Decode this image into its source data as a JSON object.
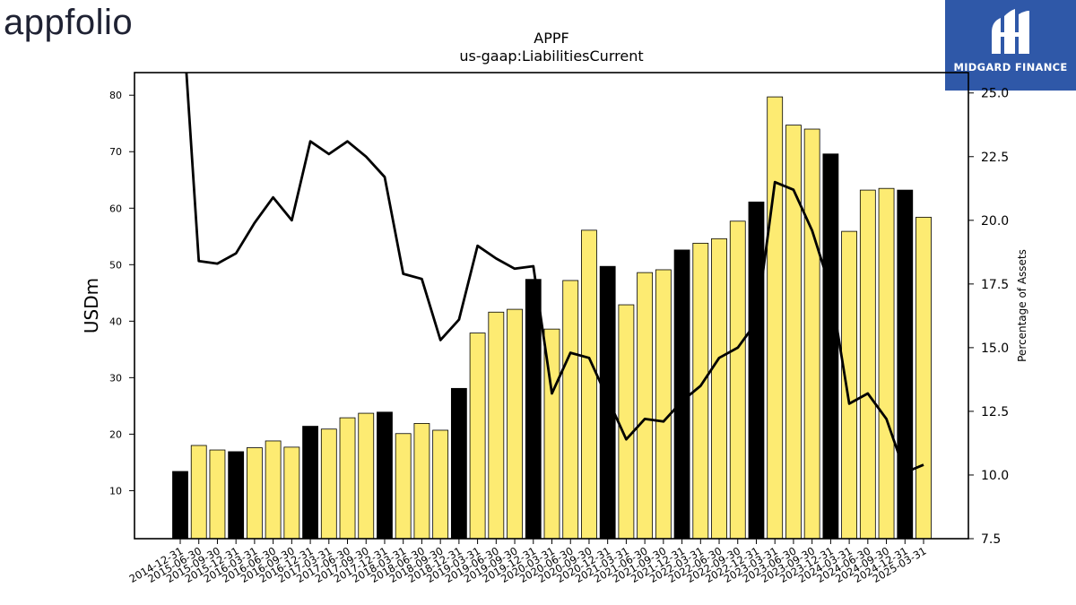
{
  "logos": {
    "left_text": "appfolio",
    "right_text": "MIDGARD FINANCE"
  },
  "chart_data": {
    "type": "bar",
    "title": "APPF",
    "subtitle": "us-gaap:LiabilitiesCurrent",
    "ylabel": "USDm",
    "y2label": "Percentage of Assets",
    "ylim": [
      1.5,
      84
    ],
    "y2lim": [
      7.5,
      25.8
    ],
    "yticks": [
      10,
      20,
      30,
      40,
      50,
      60,
      70,
      80
    ],
    "y2ticks": [
      "7.5",
      "10.0",
      "12.5",
      "15.0",
      "17.5",
      "20.0",
      "22.5",
      "25.0"
    ],
    "categories": [
      "2014-12-31",
      "2015-06-30",
      "2015-09-30",
      "2015-12-31",
      "2016-03-31",
      "2016-06-30",
      "2016-09-30",
      "2016-12-31",
      "2017-03-31",
      "2017-06-30",
      "2017-09-30",
      "2017-12-31",
      "2018-03-31",
      "2018-06-30",
      "2018-09-30",
      "2018-12-31",
      "2019-03-31",
      "2019-06-30",
      "2019-09-30",
      "2019-12-31",
      "2020-03-31",
      "2020-06-30",
      "2020-09-30",
      "2020-12-31",
      "2021-03-31",
      "2021-06-30",
      "2021-09-30",
      "2021-12-31",
      "2022-03-31",
      "2022-06-30",
      "2022-09-30",
      "2022-12-31",
      "2023-03-31",
      "2023-06-30",
      "2023-09-30",
      "2023-12-31",
      "2024-03-31",
      "2024-06-30",
      "2024-09-30",
      "2024-12-31",
      "2025-03-31"
    ],
    "series": [
      {
        "kind": "bar",
        "values": [
          13.4,
          18.0,
          17.2,
          16.9,
          17.6,
          18.8,
          17.7,
          21.4,
          20.9,
          22.9,
          23.7,
          23.9,
          20.1,
          21.9,
          20.7,
          28.1,
          37.9,
          41.6,
          42.1,
          47.4,
          38.6,
          47.2,
          56.1,
          49.7,
          42.9,
          48.6,
          49.1,
          52.6,
          53.8,
          54.6,
          57.7,
          61.1,
          79.7,
          74.7,
          74.0,
          69.6,
          55.9,
          63.2,
          63.5,
          63.2,
          58.4
        ],
        "year_end_flags": [
          1,
          0,
          0,
          1,
          0,
          0,
          0,
          1,
          0,
          0,
          0,
          1,
          0,
          0,
          0,
          1,
          0,
          0,
          0,
          1,
          0,
          0,
          0,
          1,
          0,
          0,
          0,
          1,
          0,
          0,
          0,
          1,
          0,
          0,
          0,
          1,
          0,
          0,
          0,
          1,
          0
        ]
      },
      {
        "kind": "line",
        "values": [
          29.5,
          18.4,
          18.3,
          18.7,
          19.9,
          20.9,
          20.0,
          23.1,
          22.6,
          23.1,
          22.5,
          21.7,
          17.9,
          17.7,
          15.3,
          16.1,
          19.0,
          18.5,
          18.1,
          18.2,
          13.2,
          14.8,
          14.6,
          13.0,
          11.4,
          12.2,
          12.1,
          12.9,
          13.5,
          14.6,
          15.0,
          16.0,
          21.5,
          21.2,
          19.6,
          17.3,
          12.8,
          13.2,
          12.2,
          10.1,
          10.4
        ]
      }
    ],
    "colors": {
      "bar": "#fdeb72",
      "bar_year_end": "#000000",
      "line": "#000000"
    }
  }
}
